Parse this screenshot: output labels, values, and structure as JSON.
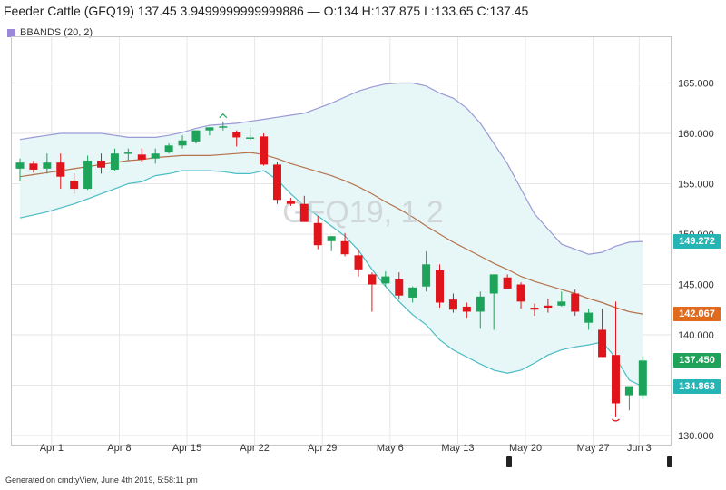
{
  "header": {
    "title": "Feeder Cattle (GFQ19) 137.45 3.9499999999999886 — O:134 H:137.875 L:133.65 C:137.45"
  },
  "legend": {
    "label": "BBANDS (20, 2)",
    "color": "#9c88d8"
  },
  "watermark": "GFQ19, 1 2",
  "footer": "Generated on cmdtyView, June 4th 2019, 5:58:11 pm",
  "colors": {
    "up": "#1ea35b",
    "down": "#e0151b",
    "band_fill": "#e7f6f6",
    "upper_band": "#9a9ad6",
    "lower_band": "#4bbcc4",
    "middle_band": "#b5734d",
    "grid": "#e6e6e6",
    "tag_upper": "#26b5b5",
    "tag_middle": "#e06b1f",
    "tag_close": "#1fa35b",
    "tag_lower": "#26b5b5"
  },
  "tags": {
    "upper": "149.272",
    "middle": "142.067",
    "close": "137.450",
    "lower": "134.863"
  },
  "chart_data": {
    "type": "candlestick",
    "title": "Feeder Cattle (GFQ19)",
    "ylim": [
      129,
      169
    ],
    "yticks": [
      130,
      135,
      140,
      145,
      150,
      155,
      160,
      165
    ],
    "ytick_labels": [
      "130.000",
      "135.000",
      "140.000",
      "145.000",
      "150.000",
      "155.000",
      "160.000",
      "165.000"
    ],
    "xticks": [
      {
        "label": "Apr 1",
        "index": 2
      },
      {
        "label": "Apr 8",
        "index": 7
      },
      {
        "label": "Apr 15",
        "index": 12
      },
      {
        "label": "Apr 22",
        "index": 17
      },
      {
        "label": "Apr 29",
        "index": 22
      },
      {
        "label": "May 6",
        "index": 27
      },
      {
        "label": "May 13",
        "index": 32
      },
      {
        "label": "May 20",
        "index": 37
      },
      {
        "label": "May 27",
        "index": 42
      },
      {
        "label": "Jun 3",
        "index": 46
      }
    ],
    "candles": [
      {
        "o": 156.5,
        "h": 157.5,
        "l": 155.3,
        "c": 157.1
      },
      {
        "o": 157.0,
        "h": 157.3,
        "l": 156.1,
        "c": 156.4
      },
      {
        "o": 156.5,
        "h": 158.0,
        "l": 156.0,
        "c": 157.1
      },
      {
        "o": 157.1,
        "h": 158.0,
        "l": 154.5,
        "c": 155.7
      },
      {
        "o": 155.3,
        "h": 156.0,
        "l": 154.0,
        "c": 154.5
      },
      {
        "o": 154.5,
        "h": 157.8,
        "l": 154.4,
        "c": 157.3
      },
      {
        "o": 157.3,
        "h": 158.0,
        "l": 156.0,
        "c": 156.6
      },
      {
        "o": 156.4,
        "h": 158.5,
        "l": 156.3,
        "c": 158.0
      },
      {
        "o": 158.0,
        "h": 158.5,
        "l": 157.3,
        "c": 158.1
      },
      {
        "o": 157.9,
        "h": 158.5,
        "l": 157.2,
        "c": 157.4
      },
      {
        "o": 157.5,
        "h": 158.5,
        "l": 157.0,
        "c": 158.0
      },
      {
        "o": 158.1,
        "h": 159.0,
        "l": 158.0,
        "c": 158.8
      },
      {
        "o": 158.8,
        "h": 159.8,
        "l": 158.5,
        "c": 159.3
      },
      {
        "o": 159.2,
        "h": 160.3,
        "l": 159.0,
        "c": 160.3
      },
      {
        "o": 160.3,
        "h": 160.6,
        "l": 159.8,
        "c": 160.6
      },
      {
        "o": 160.6,
        "h": 161.2,
        "l": 160.3,
        "c": 160.7
      },
      {
        "o": 160.1,
        "h": 160.3,
        "l": 158.7,
        "c": 159.6
      },
      {
        "o": 159.6,
        "h": 160.6,
        "l": 159.3,
        "c": 159.6
      },
      {
        "o": 159.7,
        "h": 160.0,
        "l": 156.8,
        "c": 156.9
      },
      {
        "o": 156.9,
        "h": 157.2,
        "l": 153.0,
        "c": 153.4
      },
      {
        "o": 153.3,
        "h": 153.6,
        "l": 152.8,
        "c": 153.0
      },
      {
        "o": 153.0,
        "h": 153.8,
        "l": 151.5,
        "c": 151.2
      },
      {
        "o": 151.1,
        "h": 151.8,
        "l": 148.5,
        "c": 148.9
      },
      {
        "o": 149.3,
        "h": 149.8,
        "l": 148.3,
        "c": 149.8
      },
      {
        "o": 149.3,
        "h": 150.1,
        "l": 147.8,
        "c": 148.0
      },
      {
        "o": 147.9,
        "h": 148.5,
        "l": 145.8,
        "c": 146.5
      },
      {
        "o": 146.0,
        "h": 146.2,
        "l": 142.3,
        "c": 145.0
      },
      {
        "o": 145.1,
        "h": 146.3,
        "l": 144.8,
        "c": 145.8
      },
      {
        "o": 145.5,
        "h": 146.2,
        "l": 143.5,
        "c": 143.9
      },
      {
        "o": 143.7,
        "h": 144.8,
        "l": 143.2,
        "c": 144.7
      },
      {
        "o": 144.8,
        "h": 148.3,
        "l": 144.3,
        "c": 147.0
      },
      {
        "o": 146.4,
        "h": 147.0,
        "l": 142.7,
        "c": 143.2
      },
      {
        "o": 143.5,
        "h": 144.1,
        "l": 142.2,
        "c": 142.5
      },
      {
        "o": 142.8,
        "h": 143.2,
        "l": 141.7,
        "c": 142.3
      },
      {
        "o": 142.3,
        "h": 144.3,
        "l": 140.6,
        "c": 143.8
      },
      {
        "o": 144.1,
        "h": 146.0,
        "l": 140.5,
        "c": 146.0
      },
      {
        "o": 145.7,
        "h": 146.0,
        "l": 144.6,
        "c": 144.6
      },
      {
        "o": 145.0,
        "h": 145.2,
        "l": 142.6,
        "c": 143.3
      },
      {
        "o": 142.7,
        "h": 143.1,
        "l": 141.9,
        "c": 142.5
      },
      {
        "o": 142.9,
        "h": 143.6,
        "l": 142.2,
        "c": 142.7
      },
      {
        "o": 142.9,
        "h": 144.3,
        "l": 142.8,
        "c": 143.3
      },
      {
        "o": 144.1,
        "h": 144.5,
        "l": 141.9,
        "c": 142.3
      },
      {
        "o": 141.2,
        "h": 142.6,
        "l": 140.5,
        "c": 142.2
      },
      {
        "o": 140.5,
        "h": 142.6,
        "l": 137.8,
        "c": 137.8
      },
      {
        "o": 138.0,
        "h": 143.3,
        "l": 131.9,
        "c": 133.2
      },
      {
        "o": 134.0,
        "h": 134.8,
        "l": 132.5,
        "c": 134.9
      },
      {
        "o": 134.0,
        "h": 137.875,
        "l": 133.65,
        "c": 137.45
      }
    ],
    "bbands": {
      "period": 20,
      "stddev": 2,
      "upper": [
        159.4,
        159.6,
        159.8,
        160.0,
        160.0,
        160.0,
        160.0,
        159.8,
        159.6,
        159.6,
        159.6,
        159.8,
        160.1,
        160.5,
        160.8,
        160.9,
        161.0,
        161.2,
        161.4,
        161.6,
        161.8,
        162.0,
        162.5,
        163.0,
        163.6,
        164.2,
        164.6,
        164.9,
        165.0,
        165.0,
        164.7,
        164.0,
        163.5,
        162.5,
        161.0,
        159.0,
        157.0,
        154.5,
        152.0,
        150.5,
        149.0,
        148.5,
        148.0,
        148.2,
        148.8,
        149.2,
        149.272
      ],
      "middle": [
        155.7,
        155.9,
        156.1,
        156.3,
        156.5,
        156.7,
        156.9,
        157.1,
        157.3,
        157.4,
        157.6,
        157.7,
        157.8,
        157.8,
        157.8,
        157.9,
        158.0,
        158.1,
        157.9,
        157.5,
        157.0,
        156.6,
        156.2,
        155.8,
        155.3,
        154.7,
        154.0,
        153.2,
        152.5,
        151.7,
        150.8,
        150.0,
        149.2,
        148.5,
        147.8,
        147.1,
        146.5,
        145.8,
        145.3,
        144.9,
        144.5,
        144.1,
        143.6,
        143.2,
        142.7,
        142.3,
        142.067
      ],
      "lower": [
        151.6,
        151.9,
        152.2,
        152.6,
        153.0,
        153.5,
        154.0,
        154.5,
        155.0,
        155.2,
        155.8,
        156.0,
        156.3,
        156.3,
        156.3,
        156.2,
        156.0,
        156.0,
        156.3,
        155.4,
        154.0,
        152.8,
        151.8,
        150.8,
        149.8,
        148.4,
        146.5,
        144.8,
        143.3,
        142.0,
        141.0,
        139.5,
        138.5,
        137.8,
        137.1,
        136.5,
        136.2,
        136.5,
        137.2,
        138.0,
        138.5,
        138.8,
        139.0,
        139.3,
        137.7,
        135.5,
        134.863
      ]
    },
    "grid": true,
    "legend_position": "top-left"
  }
}
